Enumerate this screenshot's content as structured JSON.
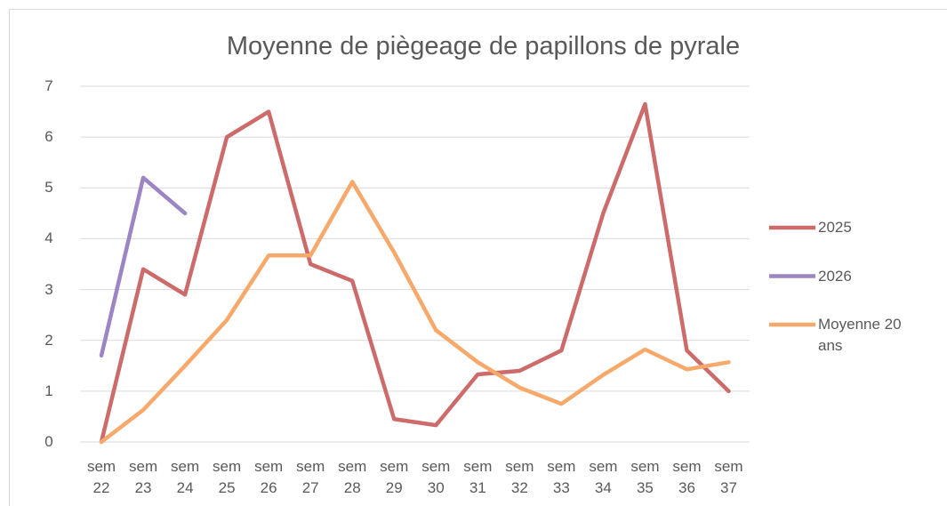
{
  "chart_data": {
    "type": "line",
    "title": "Moyenne de piègeage de papillons de pyrale",
    "categories": [
      "sem 22",
      "sem 23",
      "sem 24",
      "sem 25",
      "sem 26",
      "sem 27",
      "sem 28",
      "sem 29",
      "sem 30",
      "sem 31",
      "sem 32",
      "sem 33",
      "sem 34",
      "sem 35",
      "sem 36",
      "sem 37"
    ],
    "series": [
      {
        "name": "2025",
        "color": "#cd6b6b",
        "values": [
          0,
          3.4,
          2.9,
          6.0,
          6.5,
          3.5,
          3.17,
          0.45,
          0.33,
          1.33,
          1.4,
          1.8,
          4.5,
          6.65,
          1.8,
          1.0
        ]
      },
      {
        "name": "2026",
        "color": "#9b85c4",
        "values": [
          1.7,
          5.2,
          4.5,
          null,
          null,
          null,
          null,
          null,
          null,
          null,
          null,
          null,
          null,
          null,
          null,
          null
        ]
      },
      {
        "name": "Moyenne 20 ans",
        "color": "#f7a96b",
        "values": [
          0,
          0.63,
          1.5,
          2.4,
          3.67,
          3.67,
          5.12,
          3.73,
          2.2,
          1.57,
          1.07,
          0.75,
          1.32,
          1.82,
          1.43,
          1.57
        ]
      }
    ],
    "ylim": [
      0,
      7
    ],
    "yticks": [
      0,
      1,
      2,
      3,
      4,
      5,
      6,
      7
    ],
    "grid": true,
    "legend": "right"
  }
}
